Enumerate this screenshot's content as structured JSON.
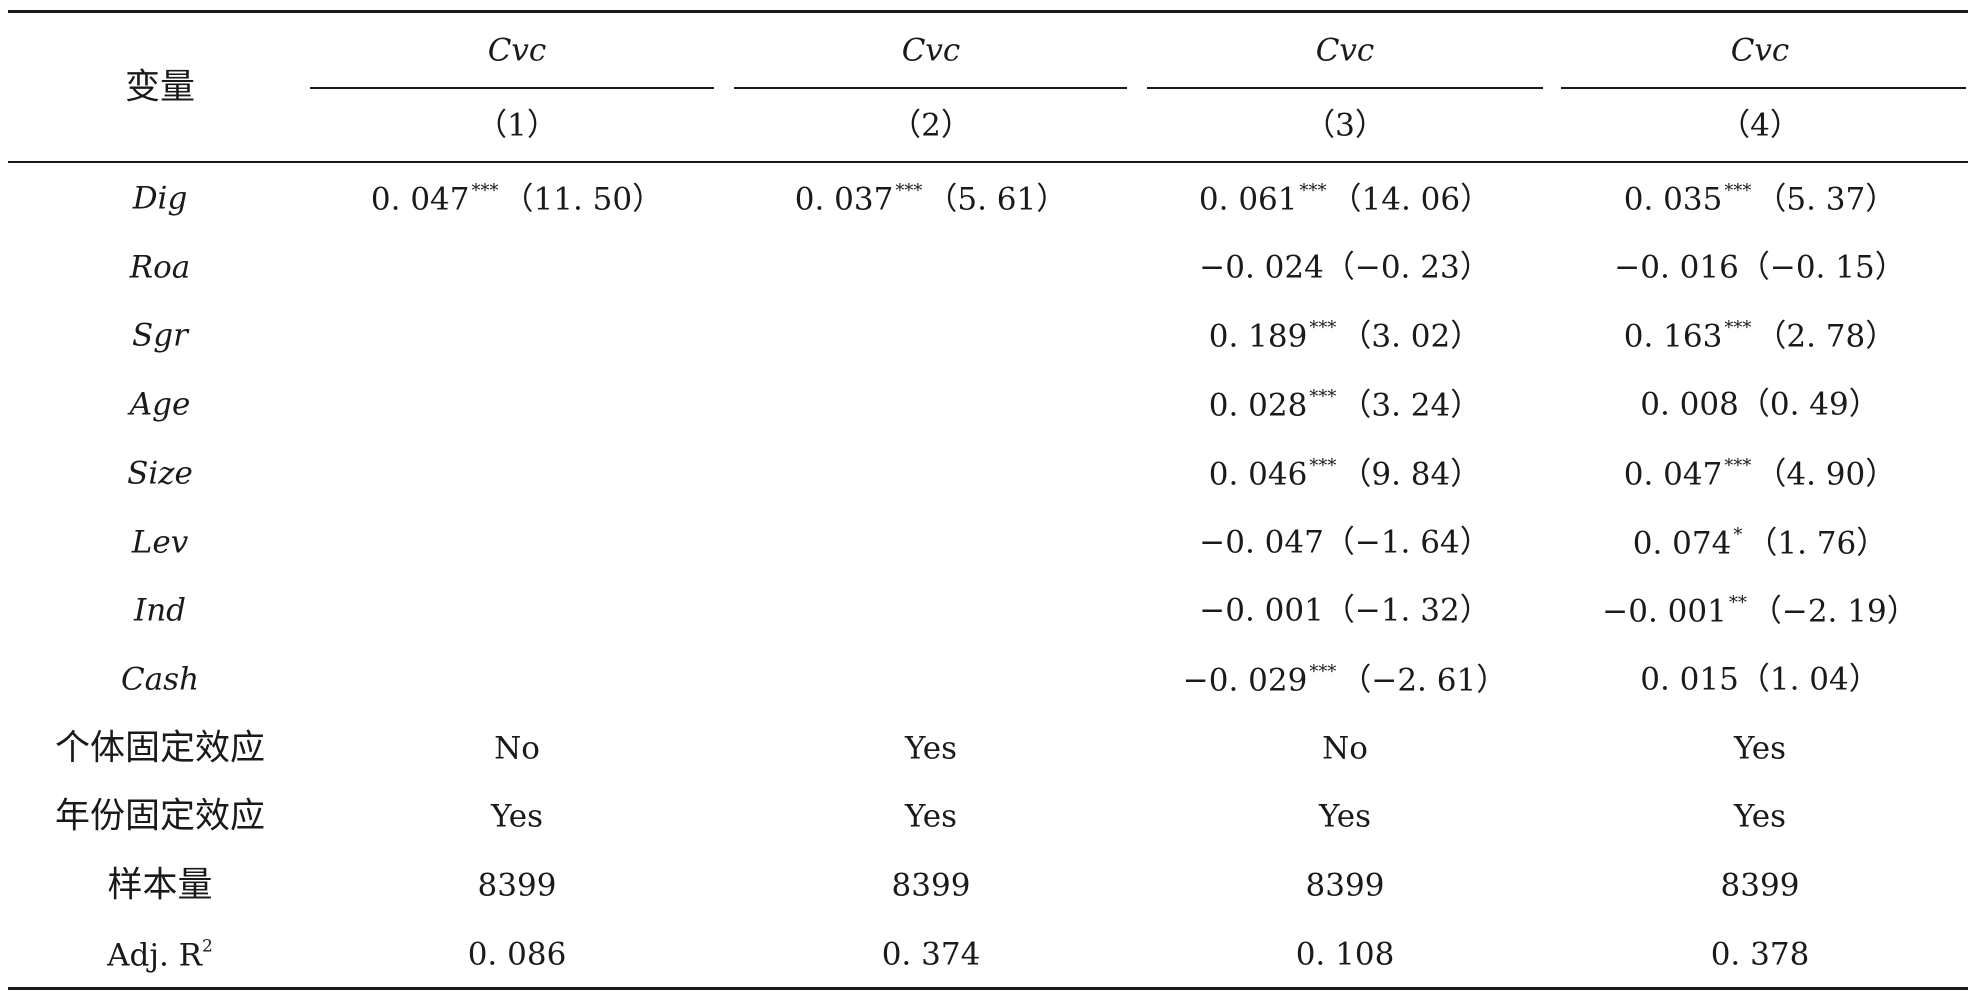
{
  "table": {
    "header": {
      "variable_label": "变量",
      "columns": [
        {
          "dep": "Cvc",
          "num": "（1）"
        },
        {
          "dep": "Cvc",
          "num": "（2）"
        },
        {
          "dep": "Cvc",
          "num": "（3）"
        },
        {
          "dep": "Cvc",
          "num": "（4）"
        }
      ]
    },
    "rows": [
      {
        "label": "Dig",
        "italic": true,
        "cells": [
          {
            "v": "0. 047",
            "s": "***",
            "t": "（11. 50）"
          },
          {
            "v": "0. 037",
            "s": "***",
            "t": "（5. 61）"
          },
          {
            "v": "0. 061",
            "s": "***",
            "t": "（14. 06）"
          },
          {
            "v": "0. 035",
            "s": "***",
            "t": "（5. 37）"
          }
        ]
      },
      {
        "label": "Roa",
        "italic": true,
        "cells": [
          null,
          null,
          {
            "v": "−0. 024",
            "s": "",
            "t": "（−0. 23）"
          },
          {
            "v": "−0. 016",
            "s": "",
            "t": "（−0. 15）"
          }
        ]
      },
      {
        "label": "Sgr",
        "italic": true,
        "cells": [
          null,
          null,
          {
            "v": "0. 189",
            "s": "***",
            "t": "（3. 02）"
          },
          {
            "v": "0. 163",
            "s": "***",
            "t": "（2. 78）"
          }
        ]
      },
      {
        "label": "Age",
        "italic": true,
        "cells": [
          null,
          null,
          {
            "v": "0. 028",
            "s": "***",
            "t": "（3. 24）"
          },
          {
            "v": "0. 008",
            "s": "",
            "t": "（0. 49）"
          }
        ]
      },
      {
        "label": "Size",
        "italic": true,
        "cells": [
          null,
          null,
          {
            "v": "0. 046",
            "s": "***",
            "t": "（9. 84）"
          },
          {
            "v": "0. 047",
            "s": "***",
            "t": "（4. 90）"
          }
        ]
      },
      {
        "label": "Lev",
        "italic": true,
        "cells": [
          null,
          null,
          {
            "v": "−0. 047",
            "s": "",
            "t": "（−1. 64）"
          },
          {
            "v": "0. 074",
            "s": "*",
            "t": "（1. 76）"
          }
        ]
      },
      {
        "label": "Ind",
        "italic": true,
        "cells": [
          null,
          null,
          {
            "v": "−0. 001",
            "s": "",
            "t": "（−1. 32）"
          },
          {
            "v": "−0. 001",
            "s": "**",
            "t": "（−2. 19）"
          }
        ]
      },
      {
        "label": "Cash",
        "italic": true,
        "cells": [
          null,
          null,
          {
            "v": "−0. 029",
            "s": "***",
            "t": "（−2. 61）"
          },
          {
            "v": "0. 015",
            "s": "",
            "t": "（1. 04）"
          }
        ]
      },
      {
        "label": "个体固定效应",
        "italic": false,
        "cells": [
          {
            "v": "No"
          },
          {
            "v": "Yes"
          },
          {
            "v": "No"
          },
          {
            "v": "Yes"
          }
        ]
      },
      {
        "label": "年份固定效应",
        "italic": false,
        "cells": [
          {
            "v": "Yes"
          },
          {
            "v": "Yes"
          },
          {
            "v": "Yes"
          },
          {
            "v": "Yes"
          }
        ]
      },
      {
        "label": "样本量",
        "italic": false,
        "cells": [
          {
            "v": "8399"
          },
          {
            "v": "8399"
          },
          {
            "v": "8399"
          },
          {
            "v": "8399"
          }
        ]
      },
      {
        "label": "Adj. R",
        "label_sup": "2",
        "italic": false,
        "cells": [
          {
            "v": "0. 086"
          },
          {
            "v": "0. 374"
          },
          {
            "v": "0. 108"
          },
          {
            "v": "0. 378"
          }
        ]
      }
    ]
  }
}
